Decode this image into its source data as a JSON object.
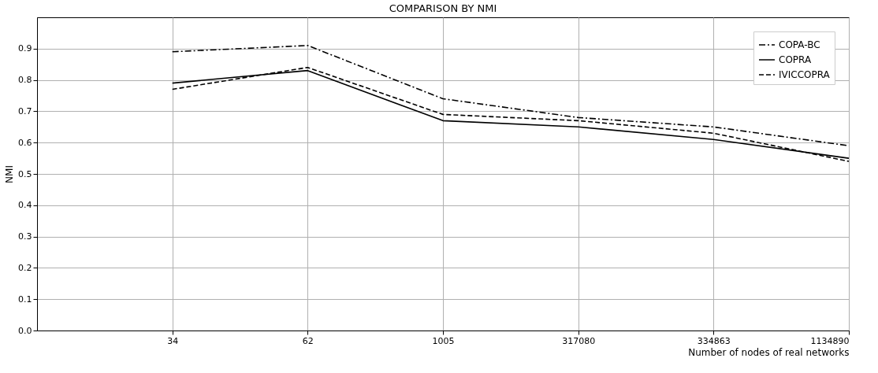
{
  "chart_data": {
    "type": "line",
    "title": "COMPARISON BY NMI",
    "xlabel": "Number of nodes of real networks",
    "ylabel": "NMI",
    "categories": [
      "34",
      "62",
      "1005",
      "317080",
      "334863",
      "1134890"
    ],
    "series": [
      {
        "name": "COPA-BC",
        "color": "#000000",
        "line_style": "dashdot",
        "values": [
          0.89,
          0.91,
          0.74,
          0.68,
          0.65,
          0.59
        ]
      },
      {
        "name": "COPRA",
        "color": "#000000",
        "line_style": "solid",
        "values": [
          0.79,
          0.83,
          0.67,
          0.65,
          0.61,
          0.55
        ]
      },
      {
        "name": "IVICCOPRA",
        "color": "#000000",
        "line_style": "dashed",
        "values": [
          0.77,
          0.84,
          0.69,
          0.67,
          0.63,
          0.54
        ]
      }
    ],
    "ylim": [
      0,
      1.0
    ],
    "yticks": [
      {
        "value": 0,
        "label": "0.0"
      },
      0.1,
      0.2,
      0.3,
      0.4,
      0.5,
      0.6,
      0.7,
      0.8,
      0.9
    ],
    "grid": true,
    "legend": "top right",
    "marker": "none"
  }
}
